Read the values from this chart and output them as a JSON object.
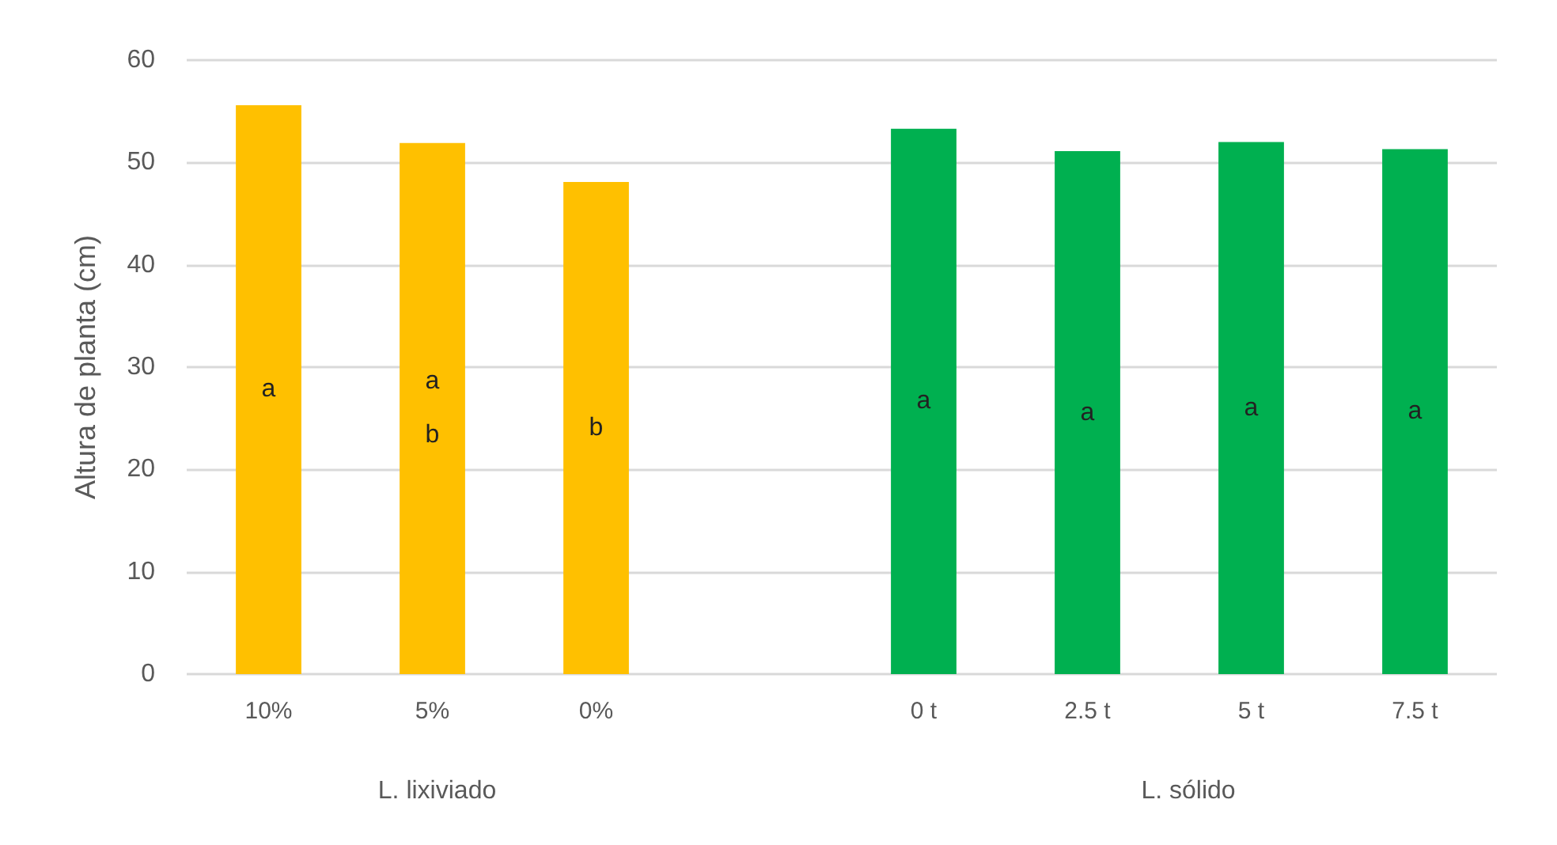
{
  "chart_data": {
    "type": "bar",
    "ylabel": "Altura de planta (cm)",
    "categories": [
      "10%",
      "5%",
      "0%",
      null,
      "0 t",
      "2.5 t",
      "5 t",
      "7.5 t"
    ],
    "values": [
      55.6,
      51.9,
      48.1,
      null,
      53.3,
      51.1,
      52.0,
      51.3
    ],
    "colors": [
      "#ffc000",
      "#ffc000",
      "#ffc000",
      null,
      "#00b050",
      "#00b050",
      "#00b050",
      "#00b050"
    ],
    "value_labels": [
      "a",
      "a\nb",
      "b",
      null,
      "a",
      "a",
      "a",
      "a"
    ],
    "annotations": [
      "L. lixiviado",
      "L. sólido"
    ],
    "ylim": [
      0,
      60
    ],
    "yticks": [
      0,
      10,
      20,
      30,
      40,
      50,
      60
    ],
    "grid": "y"
  }
}
